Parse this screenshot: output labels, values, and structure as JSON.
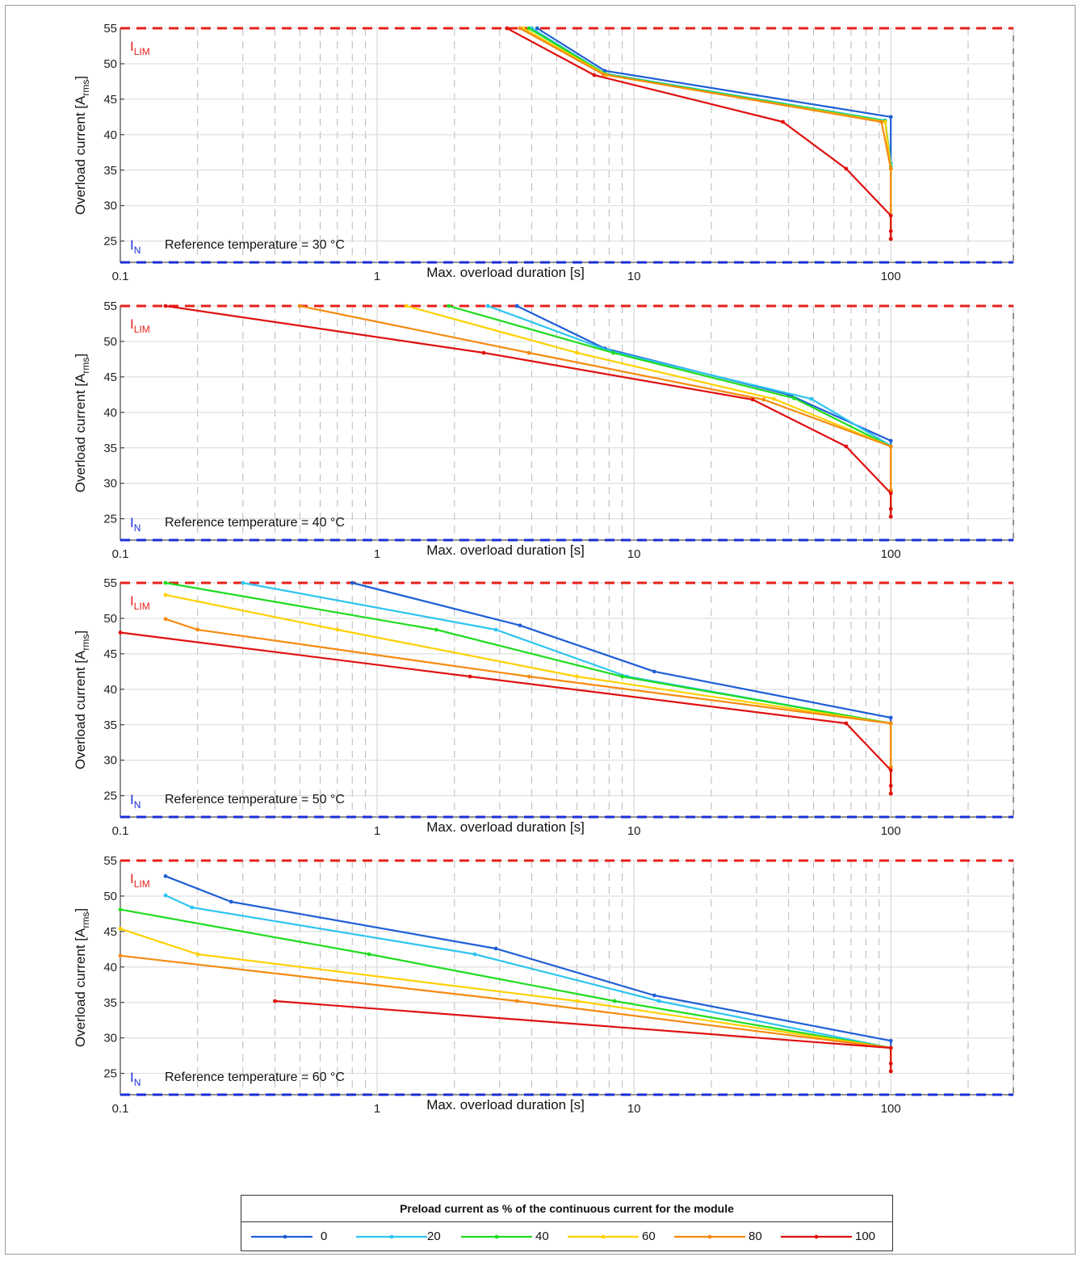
{
  "colors": {
    "series": [
      "#1f5fd6",
      "#2ec4f0",
      "#1fdc1f",
      "#ffd000",
      "#f58a10",
      "#e01010"
    ],
    "ilim": "#e8201a",
    "in": "#1a2fd8"
  },
  "shared": {
    "ylabel": "Overload current [A",
    "ylabel_sub": "rms",
    "ylabel_end": "]",
    "xlabel": "Max. overload duration [s]",
    "ilim_main": "I",
    "ilim_sub": "LIM",
    "in_main": "I",
    "in_sub": "N"
  },
  "legend": {
    "title": "Preload current as % of the continuous current for the module",
    "labels": [
      "0",
      "20",
      "40",
      "60",
      "80",
      "100"
    ]
  },
  "chart_data": [
    {
      "type": "line",
      "reference_label": "Reference temperature = 30 °C",
      "x_scale": "log",
      "xlim": [
        0.1,
        300
      ],
      "ylim": [
        22,
        55
      ],
      "x_ticks": [
        "0.1",
        "1",
        "10",
        "100"
      ],
      "y_ticks": [
        "25",
        "30",
        "35",
        "40",
        "45",
        "50",
        "55"
      ],
      "ilim_value": 55,
      "in_value": 22,
      "series": [
        {
          "x": [
            4.2,
            7.7,
            100,
            100,
            100
          ],
          "y": [
            55,
            49,
            42.5,
            36,
            25.3
          ]
        },
        {
          "x": [
            4.0,
            7.7,
            95,
            100,
            100
          ],
          "y": [
            55,
            48.6,
            42,
            36,
            25.3
          ]
        },
        {
          "x": [
            3.9,
            7.8,
            95,
            100,
            100
          ],
          "y": [
            55,
            48.5,
            41.9,
            35.5,
            25.3
          ]
        },
        {
          "x": [
            3.7,
            7.8,
            95,
            100,
            100
          ],
          "y": [
            55,
            48.4,
            41.8,
            35.2,
            25.3
          ]
        },
        {
          "x": [
            3.6,
            7.6,
            92,
            100,
            100
          ],
          "y": [
            55,
            48.5,
            41.8,
            35.2,
            25.3
          ]
        },
        {
          "x": [
            3.2,
            7.0,
            38,
            67,
            100,
            100,
            100
          ],
          "y": [
            55,
            48.4,
            41.8,
            35.2,
            28.6,
            26.4,
            25.3
          ]
        }
      ]
    },
    {
      "type": "line",
      "reference_label": "Reference temperature = 40 °C",
      "x_scale": "log",
      "xlim": [
        0.1,
        300
      ],
      "ylim": [
        22,
        55
      ],
      "x_ticks": [
        "0.1",
        "1",
        "10",
        "100"
      ],
      "y_ticks": [
        "25",
        "30",
        "35",
        "40",
        "45",
        "50",
        "55"
      ],
      "ilim_value": 55,
      "in_value": 22,
      "series": [
        {
          "x": [
            3.5,
            7.7,
            40,
            100,
            100,
            100
          ],
          "y": [
            55,
            49,
            42.5,
            36,
            29,
            25.3
          ]
        },
        {
          "x": [
            2.7,
            8.0,
            49,
            100,
            100,
            100
          ],
          "y": [
            55,
            48.7,
            41.9,
            35.3,
            29,
            25.3
          ]
        },
        {
          "x": [
            1.9,
            8.3,
            42,
            100,
            100,
            100
          ],
          "y": [
            55,
            48.4,
            42,
            35.2,
            29,
            25.3
          ]
        },
        {
          "x": [
            1.3,
            6.0,
            35,
            100,
            100,
            100
          ],
          "y": [
            55,
            48.4,
            41.9,
            35.2,
            29,
            25.3
          ]
        },
        {
          "x": [
            0.5,
            3.9,
            32,
            100,
            100,
            100
          ],
          "y": [
            55,
            48.4,
            41.8,
            35.2,
            29,
            25.3
          ]
        },
        {
          "x": [
            0.15,
            2.6,
            29,
            67,
            100,
            100,
            100
          ],
          "y": [
            55,
            48.4,
            41.8,
            35.2,
            28.6,
            26.4,
            25.3
          ]
        }
      ]
    },
    {
      "type": "line",
      "reference_label": "Reference temperature = 50 °C",
      "x_scale": "log",
      "xlim": [
        0.1,
        300
      ],
      "ylim": [
        22,
        55
      ],
      "x_ticks": [
        "0.1",
        "1",
        "10",
        "100"
      ],
      "y_ticks": [
        "25",
        "30",
        "35",
        "40",
        "45",
        "50",
        "55"
      ],
      "ilim_value": 55,
      "in_value": 22,
      "series": [
        {
          "x": [
            0.8,
            3.6,
            12,
            100,
            100,
            100
          ],
          "y": [
            55,
            49,
            42.5,
            36,
            29,
            25.3
          ]
        },
        {
          "x": [
            0.3,
            2.9,
            9.4,
            100,
            100,
            100
          ],
          "y": [
            55,
            48.4,
            41.8,
            35.2,
            29,
            25.3
          ]
        },
        {
          "x": [
            0.15,
            1.7,
            9.0,
            100,
            100,
            100
          ],
          "y": [
            55,
            48.4,
            41.8,
            35.2,
            29,
            25.3
          ]
        },
        {
          "x": [
            0.15,
            0.7,
            6.0,
            100,
            100,
            100
          ],
          "y": [
            53.3,
            48.4,
            41.8,
            35.2,
            29,
            25.3
          ]
        },
        {
          "x": [
            0.15,
            0.2,
            3.9,
            100,
            100,
            100
          ],
          "y": [
            49.9,
            48.4,
            41.8,
            35.2,
            29,
            25.3
          ]
        },
        {
          "x": [
            0.1,
            2.3,
            67,
            100,
            100,
            100
          ],
          "y": [
            48,
            41.8,
            35.2,
            28.6,
            26.4,
            25.3
          ]
        }
      ]
    },
    {
      "type": "line",
      "reference_label": "Reference temperature = 60 °C",
      "x_scale": "log",
      "xlim": [
        0.1,
        300
      ],
      "ylim": [
        22,
        55
      ],
      "x_ticks": [
        "0.1",
        "1",
        "10",
        "100"
      ],
      "y_ticks": [
        "25",
        "30",
        "35",
        "40",
        "45",
        "50",
        "55"
      ],
      "ilim_value": 55,
      "in_value": 22,
      "series": [
        {
          "x": [
            0.15,
            0.27,
            2.9,
            12,
            100,
            100
          ],
          "y": [
            52.8,
            49.2,
            42.6,
            36,
            29.6,
            28.6
          ]
        },
        {
          "x": [
            0.15,
            0.19,
            2.4,
            12.5,
            100,
            100
          ],
          "y": [
            50.1,
            48.4,
            41.8,
            35.2,
            28.6,
            25.3
          ]
        },
        {
          "x": [
            0.1,
            0.93,
            8.4,
            100,
            100
          ],
          "y": [
            48.1,
            41.8,
            35.2,
            28.6,
            25.3
          ]
        },
        {
          "x": [
            0.1,
            0.2,
            6.0,
            100,
            100
          ],
          "y": [
            45.4,
            41.8,
            35.2,
            28.6,
            25.3
          ]
        },
        {
          "x": [
            0.1,
            3.5,
            100,
            100
          ],
          "y": [
            41.6,
            35.2,
            28.6,
            25.3
          ]
        },
        {
          "x": [
            0.4,
            100,
            100,
            100
          ],
          "y": [
            35.2,
            28.6,
            26.4,
            25.3
          ]
        }
      ]
    }
  ]
}
